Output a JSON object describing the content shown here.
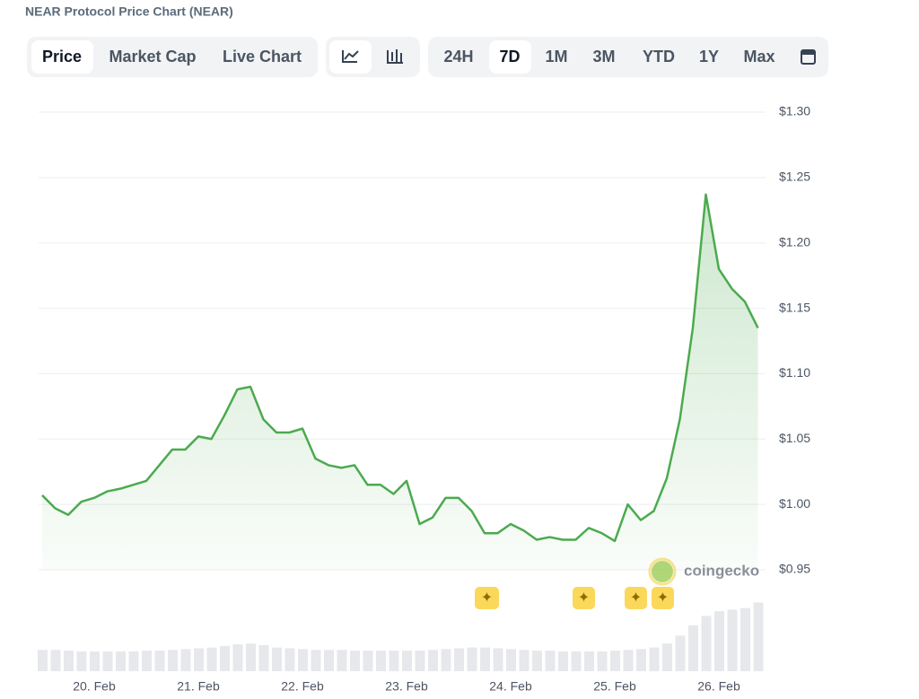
{
  "ui": {
    "title": "NEAR Protocol Price Chart (NEAR)",
    "tabs": [
      "Price",
      "Market Cap",
      "Live Chart"
    ],
    "ranges": [
      "24H",
      "7D",
      "1M",
      "3M",
      "YTD",
      "1Y",
      "Max"
    ],
    "watermark": "coingecko"
  },
  "chart_data": {
    "type": "line",
    "color": "#4caa4f",
    "categories": [
      null,
      null,
      null,
      null,
      "20. Feb",
      null,
      null,
      null,
      null,
      null,
      null,
      null,
      "21. Feb",
      null,
      null,
      null,
      null,
      null,
      null,
      null,
      "22. Feb",
      null,
      null,
      null,
      null,
      null,
      null,
      null,
      "23. Feb",
      null,
      null,
      null,
      null,
      null,
      null,
      null,
      "24. Feb",
      null,
      null,
      null,
      null,
      null,
      null,
      null,
      "25. Feb",
      null,
      null,
      null,
      null,
      null,
      null,
      null,
      "26. Feb",
      null,
      null,
      null
    ],
    "values": [
      1.007,
      0.997,
      0.992,
      1.002,
      1.005,
      1.01,
      1.012,
      1.015,
      1.018,
      1.03,
      1.042,
      1.042,
      1.052,
      1.05,
      1.068,
      1.088,
      1.09,
      1.065,
      1.055,
      1.055,
      1.058,
      1.035,
      1.03,
      1.028,
      1.03,
      1.015,
      1.015,
      1.008,
      1.018,
      0.985,
      0.99,
      1.005,
      1.005,
      0.995,
      0.978,
      0.978,
      0.985,
      0.98,
      0.973,
      0.975,
      0.973,
      0.973,
      0.982,
      0.978,
      0.972,
      1.0,
      0.988,
      0.995,
      1.02,
      1.065,
      1.135,
      1.237,
      1.18,
      1.165,
      1.155,
      1.135
    ],
    "volume": [
      27,
      27,
      26,
      25,
      25,
      25,
      25,
      25,
      26,
      26,
      27,
      28,
      29,
      30,
      32,
      34,
      35,
      33,
      30,
      29,
      28,
      27,
      27,
      27,
      26,
      26,
      26,
      26,
      26,
      26,
      27,
      28,
      29,
      30,
      30,
      29,
      28,
      27,
      26,
      26,
      25,
      25,
      25,
      25,
      26,
      27,
      28,
      30,
      35,
      45,
      58,
      70,
      76,
      78,
      80,
      87
    ],
    "volume_lim": [
      0,
      100
    ],
    "ylim": [
      0.95,
      1.3
    ],
    "yticks": [
      {
        "value": 0.95,
        "label": "$0.95"
      },
      {
        "value": 1.0,
        "label": "$1.00"
      },
      {
        "value": 1.05,
        "label": "$1.05"
      },
      {
        "value": 1.1,
        "label": "$1.10"
      },
      {
        "value": 1.15,
        "label": "$1.15"
      },
      {
        "value": 1.2,
        "label": "$1.20"
      },
      {
        "value": 1.25,
        "label": "$1.25"
      },
      {
        "value": 1.3,
        "label": "$1.30"
      }
    ],
    "grid": true
  }
}
